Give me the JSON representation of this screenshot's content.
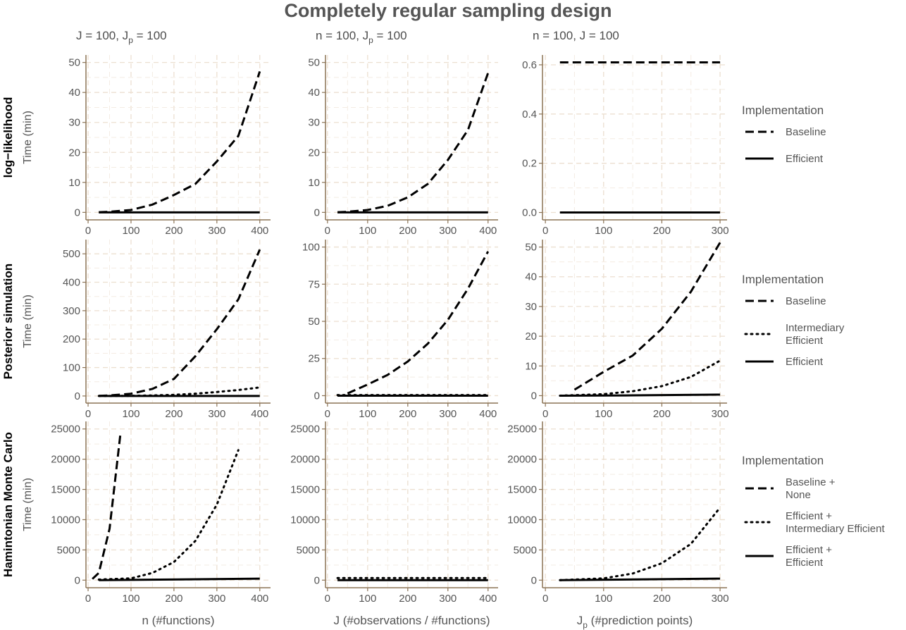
{
  "title": "Completely regular sampling design",
  "column_headers": [
    {
      "prefix": "J = 100, J",
      "sub": "p",
      "suffix": " = 100"
    },
    {
      "prefix": "n = 100, J",
      "sub": "p",
      "suffix": " = 100"
    },
    {
      "prefix": "n = 100, J = 100",
      "sub": "",
      "suffix": ""
    }
  ],
  "row_headers": [
    "log−likelihood",
    "Posterior simulation",
    "Hamintonian Monte Carlo"
  ],
  "ylabel": "Time (min)",
  "xlabels": [
    {
      "prefix": "n (#functions)",
      "sub": "",
      "suffix": ""
    },
    {
      "prefix": "J (#observations / #functions)",
      "sub": "",
      "suffix": ""
    },
    {
      "prefix": "J",
      "sub": "p",
      "suffix": " (#prediction points)"
    }
  ],
  "legends": [
    {
      "title": "Implementation",
      "entries": [
        {
          "style": "dashed",
          "lines": [
            "Baseline"
          ]
        },
        {
          "style": "solid",
          "lines": [
            "Efficient"
          ]
        }
      ]
    },
    {
      "title": "Implementation",
      "entries": [
        {
          "style": "dashed",
          "lines": [
            "Baseline"
          ]
        },
        {
          "style": "dotted",
          "lines": [
            "Intermediary",
            "Efficient"
          ]
        },
        {
          "style": "solid",
          "lines": [
            "Efficient"
          ]
        }
      ]
    },
    {
      "title": "Implementation",
      "entries": [
        {
          "style": "dashed",
          "lines": [
            "Baseline +",
            "None"
          ]
        },
        {
          "style": "dotted",
          "lines": [
            "Efficient +",
            "Intermediary Efficient"
          ]
        },
        {
          "style": "solid",
          "lines": [
            "Efficient +",
            "Efficient"
          ]
        }
      ]
    }
  ],
  "chart_data": [
    {
      "type": "line",
      "row": 0,
      "col": 0,
      "xlim": [
        -5,
        425
      ],
      "ylim": [
        -2.5,
        52.5
      ],
      "xticks": [
        0,
        100,
        200,
        300,
        400
      ],
      "yticks": [
        0,
        10,
        20,
        30,
        40,
        50
      ],
      "series": [
        {
          "style": "dashed",
          "x": [
            25,
            50,
            100,
            150,
            200,
            250,
            300,
            350,
            400
          ],
          "y": [
            0.05,
            0.2,
            0.8,
            2.6,
            5.8,
            9.5,
            17.0,
            25.5,
            47.0
          ]
        },
        {
          "style": "solid",
          "x": [
            25,
            400
          ],
          "y": [
            0,
            0
          ]
        }
      ]
    },
    {
      "type": "line",
      "row": 0,
      "col": 1,
      "xlim": [
        -5,
        425
      ],
      "ylim": [
        -2.5,
        52.5
      ],
      "xticks": [
        0,
        100,
        200,
        300,
        400
      ],
      "yticks": [
        0,
        10,
        20,
        30,
        40,
        50
      ],
      "series": [
        {
          "style": "dashed",
          "x": [
            25,
            50,
            100,
            150,
            200,
            250,
            300,
            350,
            400
          ],
          "y": [
            0.05,
            0.2,
            0.8,
            2.2,
            5.0,
            9.5,
            17.5,
            27.5,
            46.5
          ]
        },
        {
          "style": "solid",
          "x": [
            25,
            400
          ],
          "y": [
            0,
            0
          ]
        }
      ]
    },
    {
      "type": "line",
      "row": 0,
      "col": 2,
      "xlim": [
        -5,
        312
      ],
      "ylim": [
        -0.03,
        0.64
      ],
      "xticks": [
        0,
        100,
        200,
        300
      ],
      "yticks": [
        0.0,
        0.2,
        0.4,
        0.6
      ],
      "series": [
        {
          "style": "dashed",
          "x": [
            25,
            300
          ],
          "y": [
            0.61,
            0.61
          ]
        },
        {
          "style": "solid",
          "x": [
            25,
            300
          ],
          "y": [
            0,
            0
          ]
        }
      ]
    },
    {
      "type": "line",
      "row": 1,
      "col": 0,
      "xlim": [
        -5,
        425
      ],
      "ylim": [
        -25,
        550
      ],
      "xticks": [
        0,
        100,
        200,
        300,
        400
      ],
      "yticks": [
        0,
        100,
        200,
        300,
        400,
        500
      ],
      "series": [
        {
          "style": "dashed",
          "x": [
            25,
            50,
            100,
            150,
            200,
            250,
            300,
            350,
            400
          ],
          "y": [
            0.5,
            2,
            8,
            25,
            60,
            140,
            235,
            340,
            515
          ]
        },
        {
          "style": "dotted",
          "x": [
            25,
            100,
            150,
            200,
            250,
            300,
            350,
            400
          ],
          "y": [
            0,
            0.5,
            2,
            4,
            8,
            14,
            21,
            30
          ]
        },
        {
          "style": "solid",
          "x": [
            25,
            400
          ],
          "y": [
            0,
            0
          ]
        }
      ]
    },
    {
      "type": "line",
      "row": 1,
      "col": 1,
      "xlim": [
        -5,
        425
      ],
      "ylim": [
        -5,
        105
      ],
      "xticks": [
        0,
        100,
        200,
        300,
        400
      ],
      "yticks": [
        0,
        25,
        50,
        75,
        100
      ],
      "series": [
        {
          "style": "dashed",
          "x": [
            50,
            100,
            150,
            200,
            250,
            300,
            350,
            400
          ],
          "y": [
            1.5,
            7.5,
            14,
            23,
            35,
            51,
            72,
            97
          ]
        },
        {
          "style": "dotted",
          "x": [
            25,
            400
          ],
          "y": [
            0.4,
            0.4
          ]
        },
        {
          "style": "solid",
          "x": [
            25,
            400
          ],
          "y": [
            0,
            0
          ]
        }
      ]
    },
    {
      "type": "line",
      "row": 1,
      "col": 2,
      "xlim": [
        -5,
        312
      ],
      "ylim": [
        -2.5,
        52.5
      ],
      "xticks": [
        0,
        100,
        200,
        300
      ],
      "yticks": [
        0,
        10,
        20,
        30,
        40,
        50
      ],
      "series": [
        {
          "style": "dashed",
          "x": [
            50,
            100,
            150,
            200,
            250,
            300
          ],
          "y": [
            2,
            8,
            13.5,
            22.5,
            35,
            51.5
          ]
        },
        {
          "style": "dotted",
          "x": [
            25,
            100,
            150,
            200,
            250,
            300
          ],
          "y": [
            0,
            0.5,
            1.5,
            3.2,
            6.3,
            11.8
          ]
        },
        {
          "style": "solid",
          "x": [
            25,
            150,
            300
          ],
          "y": [
            0,
            0.1,
            0.35
          ]
        }
      ]
    },
    {
      "type": "line",
      "row": 2,
      "col": 0,
      "xlim": [
        -5,
        425
      ],
      "ylim": [
        -1250,
        26250
      ],
      "xticks": [
        0,
        100,
        200,
        300,
        400
      ],
      "yticks": [
        0,
        5000,
        10000,
        15000,
        20000,
        25000
      ],
      "series": [
        {
          "style": "dashed",
          "x": [
            10,
            25,
            50,
            75
          ],
          "y": [
            200,
            1200,
            8500,
            24000
          ]
        },
        {
          "style": "dotted",
          "x": [
            25,
            100,
            150,
            200,
            250,
            300,
            350
          ],
          "y": [
            100,
            300,
            1200,
            3000,
            6500,
            12500,
            21500
          ]
        },
        {
          "style": "solid",
          "x": [
            25,
            400
          ],
          "y": [
            0,
            250
          ]
        }
      ]
    },
    {
      "type": "line",
      "row": 2,
      "col": 1,
      "xlim": [
        -5,
        425
      ],
      "ylim": [
        -1250,
        26250
      ],
      "xticks": [
        0,
        100,
        200,
        300,
        400
      ],
      "yticks": [
        0,
        5000,
        10000,
        15000,
        20000,
        25000
      ],
      "series": [
        {
          "style": "dotted",
          "x": [
            25,
            400
          ],
          "y": [
            350,
            350
          ]
        },
        {
          "style": "solid",
          "x": [
            25,
            400
          ],
          "y": [
            0,
            0
          ]
        }
      ]
    },
    {
      "type": "line",
      "row": 2,
      "col": 2,
      "xlim": [
        -5,
        312
      ],
      "ylim": [
        -1250,
        26250
      ],
      "xticks": [
        0,
        100,
        200,
        300
      ],
      "yticks": [
        0,
        5000,
        10000,
        15000,
        20000,
        25000
      ],
      "series": [
        {
          "style": "dotted",
          "x": [
            25,
            100,
            150,
            200,
            250,
            300
          ],
          "y": [
            0,
            300,
            1100,
            2800,
            6000,
            12000
          ]
        },
        {
          "style": "solid",
          "x": [
            25,
            300
          ],
          "y": [
            0,
            250
          ]
        }
      ]
    }
  ]
}
